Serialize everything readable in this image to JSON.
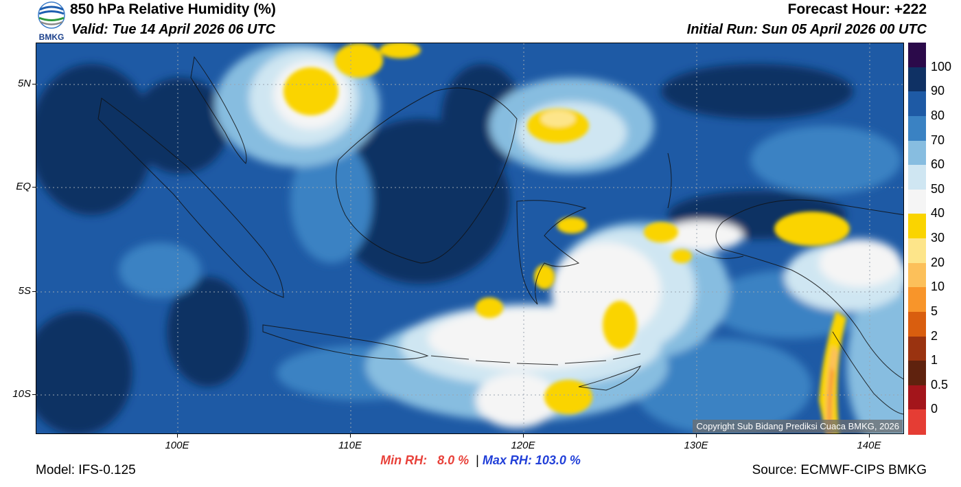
{
  "header": {
    "title": "850 hPa Relative Humidity (%)",
    "valid": "Valid: Tue 14 April 2026 06 UTC",
    "forecast_hour": "Forecast Hour: +222",
    "initial_run": "Initial Run: Sun 05 April 2026 00 UTC",
    "logo_text": "BMKG"
  },
  "axes": {
    "lat_labels": [
      "5N",
      "EQ",
      "5S",
      "10S"
    ],
    "lon_labels": [
      "100E",
      "110E",
      "120E",
      "130E",
      "140E"
    ]
  },
  "colorbar": {
    "labels": [
      "100",
      "90",
      "80",
      "70",
      "60",
      "50",
      "40",
      "30",
      "20",
      "10",
      "5",
      "2",
      "1",
      "0.5",
      "0"
    ],
    "colors": [
      "#2b0a4a",
      "#0f3164",
      "#1e5aa5",
      "#3a82c3",
      "#87bde0",
      "#cfe6f2",
      "#f5f5f5",
      "#fad400",
      "#fde58a",
      "#fcc05a",
      "#f8952a",
      "#d95e0f",
      "#9a3310",
      "#5f220e",
      "#a3151b",
      "#e53d34"
    ]
  },
  "stats": {
    "min_label": "Min RH:",
    "min_value": "8.0 %",
    "separator": "|",
    "max_label": "Max RH:",
    "max_value": "103.0 %"
  },
  "footer": {
    "model": "Model: IFS-0.125",
    "source": "Source: ECMWF-CIPS BMKG",
    "copyright": "Copyright Sub Bidang Prediksi Cuaca BMKG, 2026"
  }
}
